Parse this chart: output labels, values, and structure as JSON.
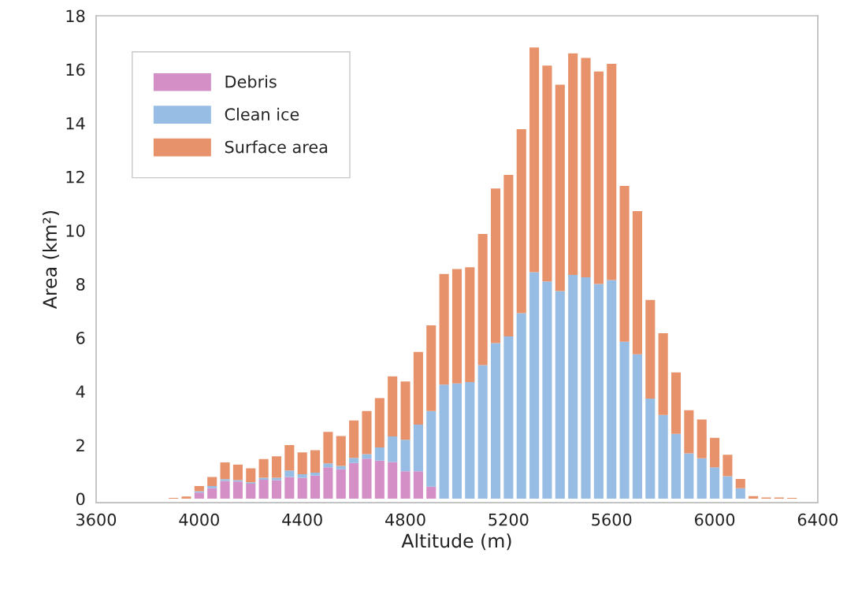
{
  "chart_data": {
    "type": "bar",
    "stacked": true,
    "xlabel": "Altitude (m)",
    "ylabel": "Area (km²)",
    "x": [
      3900,
      3950,
      4000,
      4050,
      4100,
      4150,
      4200,
      4250,
      4300,
      4350,
      4400,
      4450,
      4500,
      4550,
      4600,
      4650,
      4700,
      4750,
      4800,
      4850,
      4900,
      4950,
      5000,
      5050,
      5100,
      5150,
      5200,
      5250,
      5300,
      5350,
      5400,
      5450,
      5500,
      5550,
      5600,
      5650,
      5700,
      5750,
      5800,
      5850,
      5900,
      5950,
      6000,
      6050,
      6100,
      6150,
      6200,
      6250,
      6300
    ],
    "series": [
      {
        "name": "Debris",
        "color": "#d48fc6",
        "values": [
          0,
          0,
          0.23,
          0.39,
          0.66,
          0.64,
          0.56,
          0.71,
          0.69,
          0.81,
          0.78,
          0.86,
          1.17,
          1.1,
          1.33,
          1.49,
          1.42,
          1.37,
          1.02,
          1.02,
          0.45,
          0,
          0,
          0,
          0,
          0,
          0,
          0,
          0,
          0,
          0,
          0,
          0,
          0,
          0,
          0,
          0,
          0,
          0,
          0,
          0,
          0,
          0,
          0,
          0,
          0,
          0,
          0,
          0
        ]
      },
      {
        "name": "Clean ice",
        "color": "#98bde5",
        "values": [
          0,
          0,
          0.05,
          0.08,
          0.07,
          0.05,
          0.05,
          0.07,
          0.09,
          0.24,
          0.13,
          0.11,
          0.15,
          0.12,
          0.19,
          0.17,
          0.49,
          0.95,
          1.18,
          1.74,
          2.82,
          4.25,
          4.3,
          4.35,
          4.98,
          5.8,
          6.05,
          6.92,
          8.44,
          8.1,
          7.74,
          8.34,
          8.25,
          8.0,
          8.15,
          5.85,
          5.38,
          3.73,
          3.12,
          2.42,
          1.69,
          1.51,
          1.17,
          0.84,
          0.39,
          0,
          0,
          0,
          0
        ]
      },
      {
        "name": "Surface area",
        "color": "#e8926b",
        "values": [
          0.03,
          0.08,
          0.19,
          0.34,
          0.62,
          0.58,
          0.52,
          0.7,
          0.8,
          0.95,
          0.82,
          0.84,
          1.17,
          1.12,
          1.4,
          1.61,
          1.84,
          2.24,
          2.17,
          2.71,
          3.19,
          4.13,
          4.26,
          4.28,
          4.89,
          5.76,
          6.02,
          6.85,
          8.38,
          8.04,
          7.69,
          8.26,
          8.18,
          7.92,
          8.06,
          5.81,
          5.34,
          3.68,
          3.05,
          2.29,
          1.61,
          1.44,
          1.1,
          0.8,
          0.35,
          0.1,
          0.05,
          0.05,
          0.03
        ]
      }
    ],
    "xlim": [
      3600,
      6400
    ],
    "xticks": [
      3600,
      4000,
      4400,
      4800,
      5200,
      5600,
      6000,
      6400
    ],
    "ylim": [
      -0.15,
      18
    ],
    "yticks": [
      0,
      2,
      4,
      6,
      8,
      10,
      12,
      14,
      16,
      18
    ],
    "grid": false,
    "legend": "top left"
  }
}
